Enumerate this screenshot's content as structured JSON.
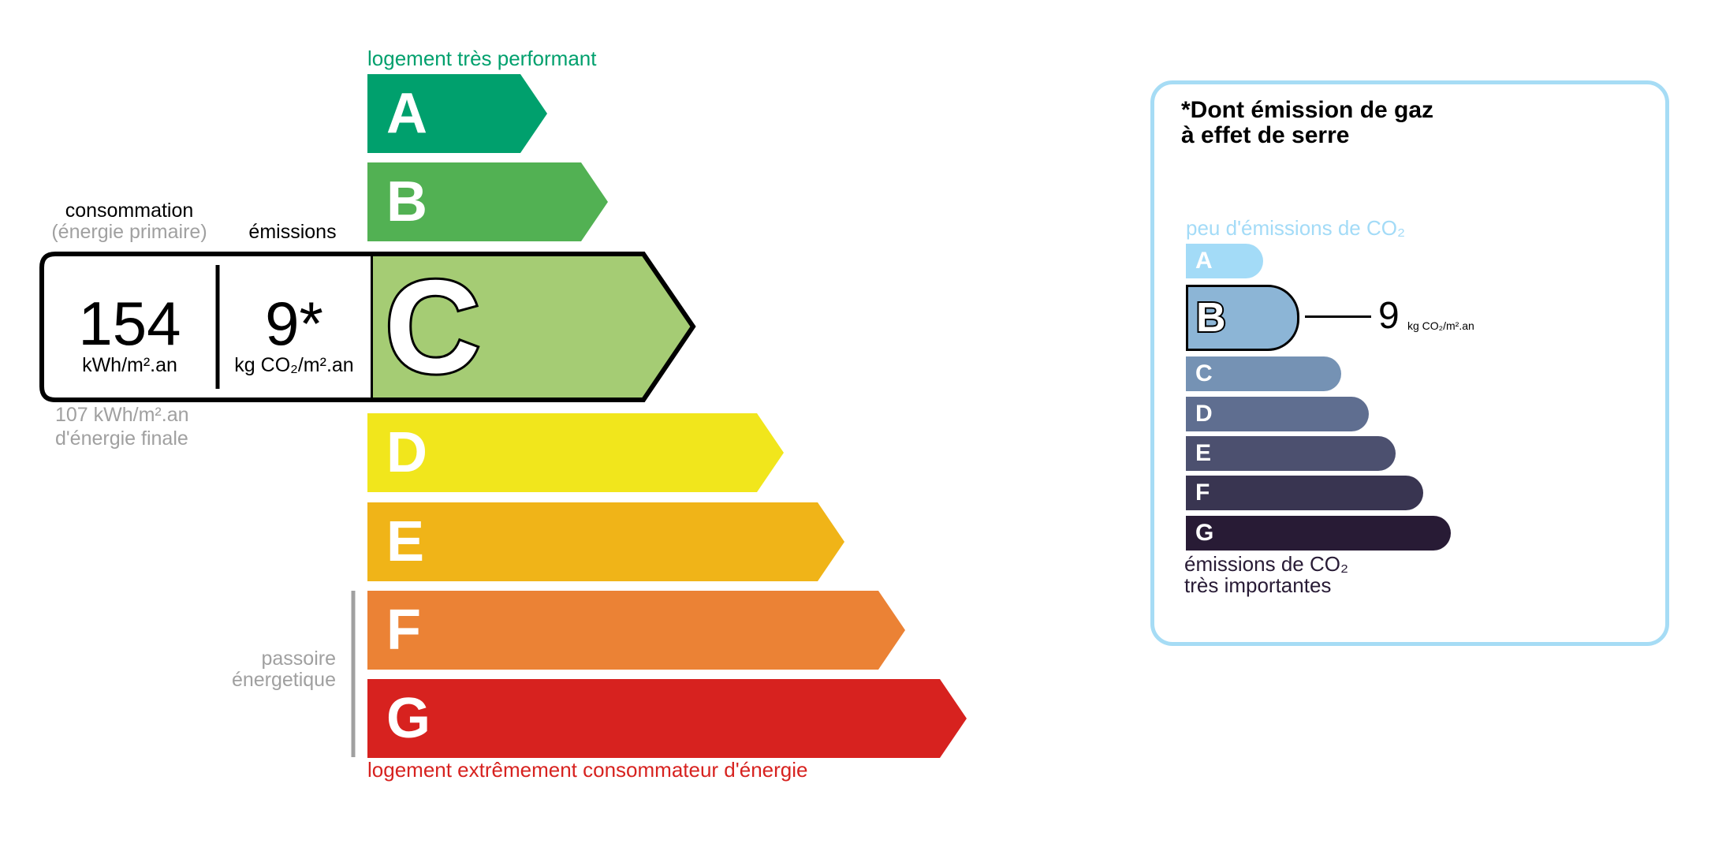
{
  "energy": {
    "top_label": "logement très performant",
    "bottom_label": "logement extrêmement consommateur d'énergie",
    "passoire_label": [
      "passoire",
      "énergetique"
    ],
    "classes": [
      {
        "letter": "A",
        "color": "#00a06d"
      },
      {
        "letter": "B",
        "color": "#52b153"
      },
      {
        "letter": "C",
        "color": "#a5cc74"
      },
      {
        "letter": "D",
        "color": "#f1e61c"
      },
      {
        "letter": "E",
        "color": "#f0b418"
      },
      {
        "letter": "F",
        "color": "#eb8235"
      },
      {
        "letter": "G",
        "color": "#d7221f"
      }
    ],
    "current_class": "C",
    "consumption_header": "consommation",
    "consumption_subheader": "(énergie primaire)",
    "emissions_header": "émissions",
    "consumption_value": "154",
    "consumption_unit": "kWh/m².an",
    "emissions_value": "9*",
    "emissions_unit": "kg CO₂/m².an",
    "final_energy_line1": "107 kWh/m².an",
    "final_energy_line2": "d'énergie finale"
  },
  "ghg": {
    "title_line1": "*Dont émission de gaz",
    "title_line2": "à effet de serre",
    "top_label": "peu d'émissions de CO₂",
    "bottom_label_line1": "émissions de CO₂",
    "bottom_label_line2": "très importantes",
    "classes": [
      {
        "letter": "A",
        "color": "#a3dbf7"
      },
      {
        "letter": "B",
        "color": "#8cb5d6"
      },
      {
        "letter": "C",
        "color": "#7592b4"
      },
      {
        "letter": "D",
        "color": "#5f6e90"
      },
      {
        "letter": "E",
        "color": "#4c506f"
      },
      {
        "letter": "F",
        "color": "#393551"
      },
      {
        "letter": "G",
        "color": "#281b35"
      }
    ],
    "current_class": "B",
    "value": "9",
    "unit": "kg CO₂/m².an",
    "border_color": "#a6dcf5"
  }
}
